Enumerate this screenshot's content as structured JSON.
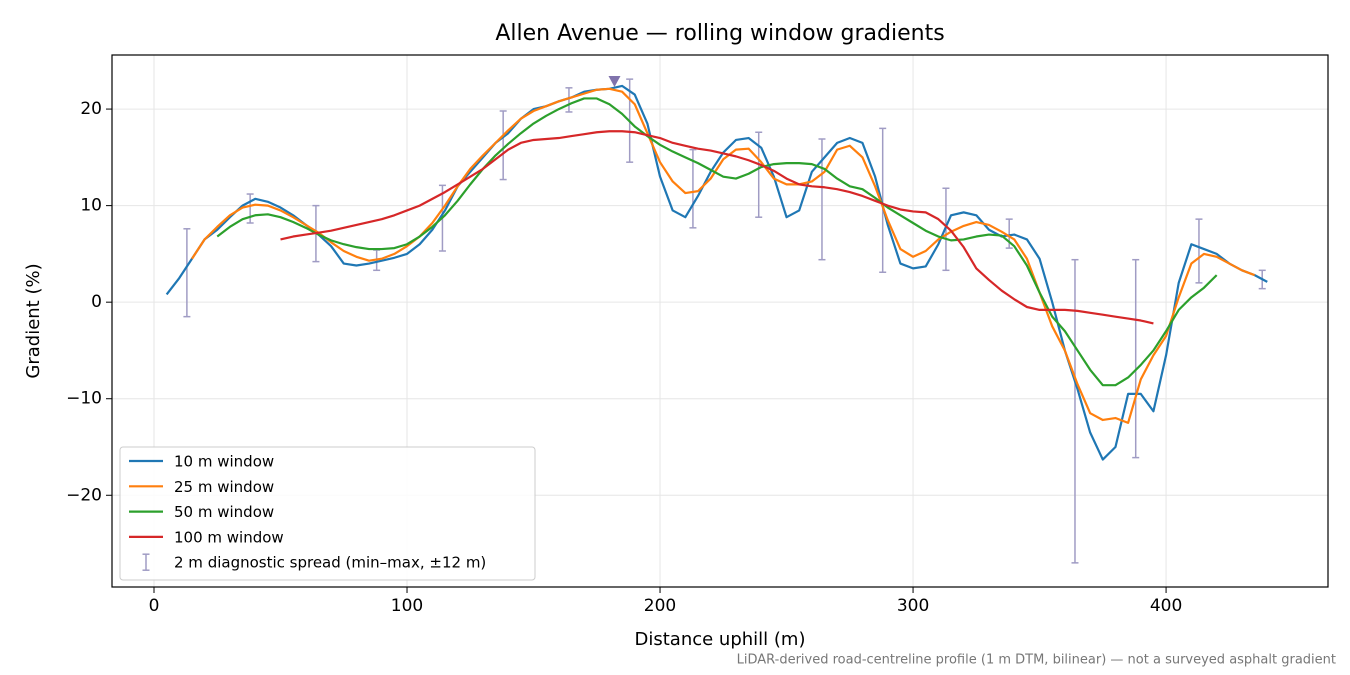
{
  "chart_data": {
    "type": "line",
    "title": "Allen Avenue — rolling window gradients",
    "xlabel": "Distance uphill (m)",
    "ylabel": "Gradient (%)",
    "footnote": "LiDAR-derived road-centreline profile (1 m DTM, bilinear) — not a surveyed asphalt gradient",
    "xlim": [
      -16.6,
      464
    ],
    "ylim": [
      -29.5,
      25.6
    ],
    "xticks": [
      0,
      100,
      200,
      300,
      400
    ],
    "yticks": [
      {
        "value": -20,
        "label": "−20"
      },
      {
        "value": -10,
        "label": "−10"
      },
      0,
      10,
      20
    ],
    "grid": true,
    "legend": "lower left",
    "x": [
      5,
      10,
      15,
      20,
      25,
      30,
      35,
      40,
      45,
      50,
      55,
      60,
      65,
      70,
      75,
      80,
      85,
      90,
      95,
      100,
      105,
      110,
      115,
      120,
      125,
      130,
      135,
      140,
      145,
      150,
      155,
      160,
      165,
      170,
      175,
      180,
      185,
      190,
      195,
      200,
      205,
      210,
      215,
      220,
      225,
      230,
      235,
      240,
      245,
      250,
      255,
      260,
      265,
      270,
      275,
      280,
      285,
      290,
      295,
      300,
      305,
      310,
      315,
      320,
      325,
      330,
      335,
      340,
      345,
      350,
      355,
      360,
      365,
      370,
      375,
      380,
      385,
      390,
      395,
      400,
      405,
      410,
      415,
      420,
      425,
      430,
      435,
      440
    ],
    "series": [
      {
        "name": "10 m window",
        "color": "#1f77b4",
        "values": [
          0.8,
          2.5,
          4.5,
          6.5,
          7.5,
          8.8,
          10.0,
          10.7,
          10.4,
          9.8,
          9.0,
          8.0,
          7.0,
          5.8,
          4.0,
          3.8,
          4.0,
          4.3,
          4.6,
          5.0,
          6.0,
          7.5,
          9.5,
          12.0,
          13.5,
          15.0,
          16.5,
          17.5,
          19.0,
          20.0,
          20.3,
          20.8,
          21.2,
          21.8,
          22.0,
          22.1,
          22.4,
          21.5,
          18.5,
          13.0,
          9.5,
          8.8,
          11.0,
          13.5,
          15.5,
          16.8,
          17.0,
          16.0,
          13.0,
          8.8,
          9.5,
          13.5,
          15.0,
          16.5,
          17.0,
          16.5,
          13.0,
          8.0,
          4.0,
          3.5,
          3.7,
          6.0,
          9.0,
          9.3,
          9.0,
          7.5,
          6.8,
          7.0,
          6.5,
          4.5,
          0,
          -5.0,
          -9.0,
          -13.5,
          -16.3,
          -15.0,
          -9.5,
          -9.5,
          -11.3,
          -5.5,
          2.0,
          6.0,
          5.5,
          5.0,
          4.0,
          3.3,
          2.8,
          2.1
        ]
      },
      {
        "name": "25 m window",
        "color": "#ff7f0e",
        "values": [
          null,
          null,
          4.5,
          6.5,
          7.8,
          9.0,
          9.8,
          10.1,
          10.0,
          9.5,
          8.8,
          8.0,
          7.2,
          6.2,
          5.3,
          4.7,
          4.3,
          4.5,
          5.0,
          5.8,
          6.8,
          8.2,
          10.0,
          12.0,
          13.8,
          15.2,
          16.5,
          17.8,
          19.0,
          19.8,
          20.3,
          20.8,
          21.2,
          21.6,
          22.0,
          22.1,
          21.8,
          20.5,
          17.5,
          14.5,
          12.5,
          11.3,
          11.5,
          12.8,
          14.8,
          15.8,
          15.9,
          14.5,
          12.8,
          12.2,
          12.2,
          12.5,
          13.5,
          15.8,
          16.2,
          15.0,
          12.0,
          8.5,
          5.5,
          4.7,
          5.3,
          6.5,
          7.3,
          7.9,
          8.3,
          8.0,
          7.3,
          6.5,
          4.5,
          1.0,
          -2.5,
          -5.0,
          -8.5,
          -11.5,
          -12.2,
          -12.0,
          -12.5,
          -8.0,
          -5.5,
          -3.5,
          0.5,
          4.0,
          5.0,
          4.7,
          4.0,
          3.3,
          2.8,
          null
        ]
      },
      {
        "name": "50 m window",
        "color": "#2ca02c",
        "values": [
          null,
          null,
          null,
          null,
          6.8,
          7.8,
          8.6,
          9.0,
          9.1,
          8.8,
          8.3,
          7.7,
          7.0,
          6.4,
          6.0,
          5.7,
          5.5,
          5.5,
          5.6,
          6.0,
          6.8,
          7.8,
          9.0,
          10.5,
          12.2,
          13.8,
          15.2,
          16.4,
          17.5,
          18.5,
          19.3,
          20.0,
          20.6,
          21.1,
          21.1,
          20.5,
          19.5,
          18.2,
          17.2,
          16.3,
          15.6,
          15.0,
          14.4,
          13.7,
          13.0,
          12.8,
          13.3,
          14.0,
          14.3,
          14.4,
          14.4,
          14.3,
          13.8,
          12.8,
          12.0,
          11.7,
          10.8,
          9.8,
          9.0,
          8.2,
          7.4,
          6.8,
          6.4,
          6.5,
          6.8,
          7.0,
          6.9,
          5.8,
          3.8,
          1.0,
          -1.5,
          -3.0,
          -5.0,
          -7.0,
          -8.6,
          -8.6,
          -7.8,
          -6.5,
          -5.0,
          -3.0,
          -0.8,
          0.5,
          1.5,
          2.8,
          null,
          null,
          null,
          null
        ]
      },
      {
        "name": "100 m window",
        "color": "#d62728",
        "values": [
          null,
          null,
          null,
          null,
          null,
          null,
          null,
          null,
          null,
          6.5,
          6.8,
          7.0,
          7.2,
          7.4,
          7.7,
          8.0,
          8.3,
          8.6,
          9.0,
          9.5,
          10.0,
          10.7,
          11.4,
          12.2,
          13.0,
          13.8,
          14.8,
          15.8,
          16.5,
          16.8,
          16.9,
          17.0,
          17.2,
          17.4,
          17.6,
          17.7,
          17.7,
          17.6,
          17.3,
          17.0,
          16.5,
          16.2,
          15.9,
          15.7,
          15.4,
          15.1,
          14.7,
          14.2,
          13.6,
          12.8,
          12.2,
          12.0,
          11.9,
          11.7,
          11.4,
          11.0,
          10.5,
          10.0,
          9.6,
          9.4,
          9.3,
          8.6,
          7.4,
          5.7,
          3.5,
          2.3,
          1.2,
          0.3,
          -0.5,
          -0.8,
          -0.8,
          -0.8,
          -0.9,
          -1.1,
          -1.3,
          -1.5,
          -1.7,
          -1.9,
          -2.2,
          null,
          null,
          null,
          null,
          null,
          null,
          null,
          null,
          null
        ]
      }
    ],
    "errorbars": {
      "name": "2 m diagnostic spread (min–max, ±12 m)",
      "color": "#a09cc4",
      "x": [
        13,
        38,
        64,
        88,
        114,
        138,
        164,
        188,
        213,
        239,
        264,
        288,
        313,
        338,
        364,
        388,
        413,
        438
      ],
      "low": [
        -1.5,
        8.2,
        4.2,
        3.3,
        5.3,
        12.7,
        19.7,
        14.5,
        7.7,
        8.8,
        4.4,
        3.1,
        3.3,
        5.6,
        -27.0,
        -16.1,
        2.0,
        1.4
      ],
      "high": [
        7.6,
        11.2,
        10.0,
        5.4,
        12.1,
        19.8,
        22.2,
        23.1,
        15.8,
        17.6,
        16.9,
        18.0,
        11.8,
        8.6,
        4.4,
        4.4,
        8.6,
        3.3
      ]
    },
    "peak_marker": {
      "x": 182,
      "y": 22.8,
      "color": "#8073ac"
    }
  }
}
